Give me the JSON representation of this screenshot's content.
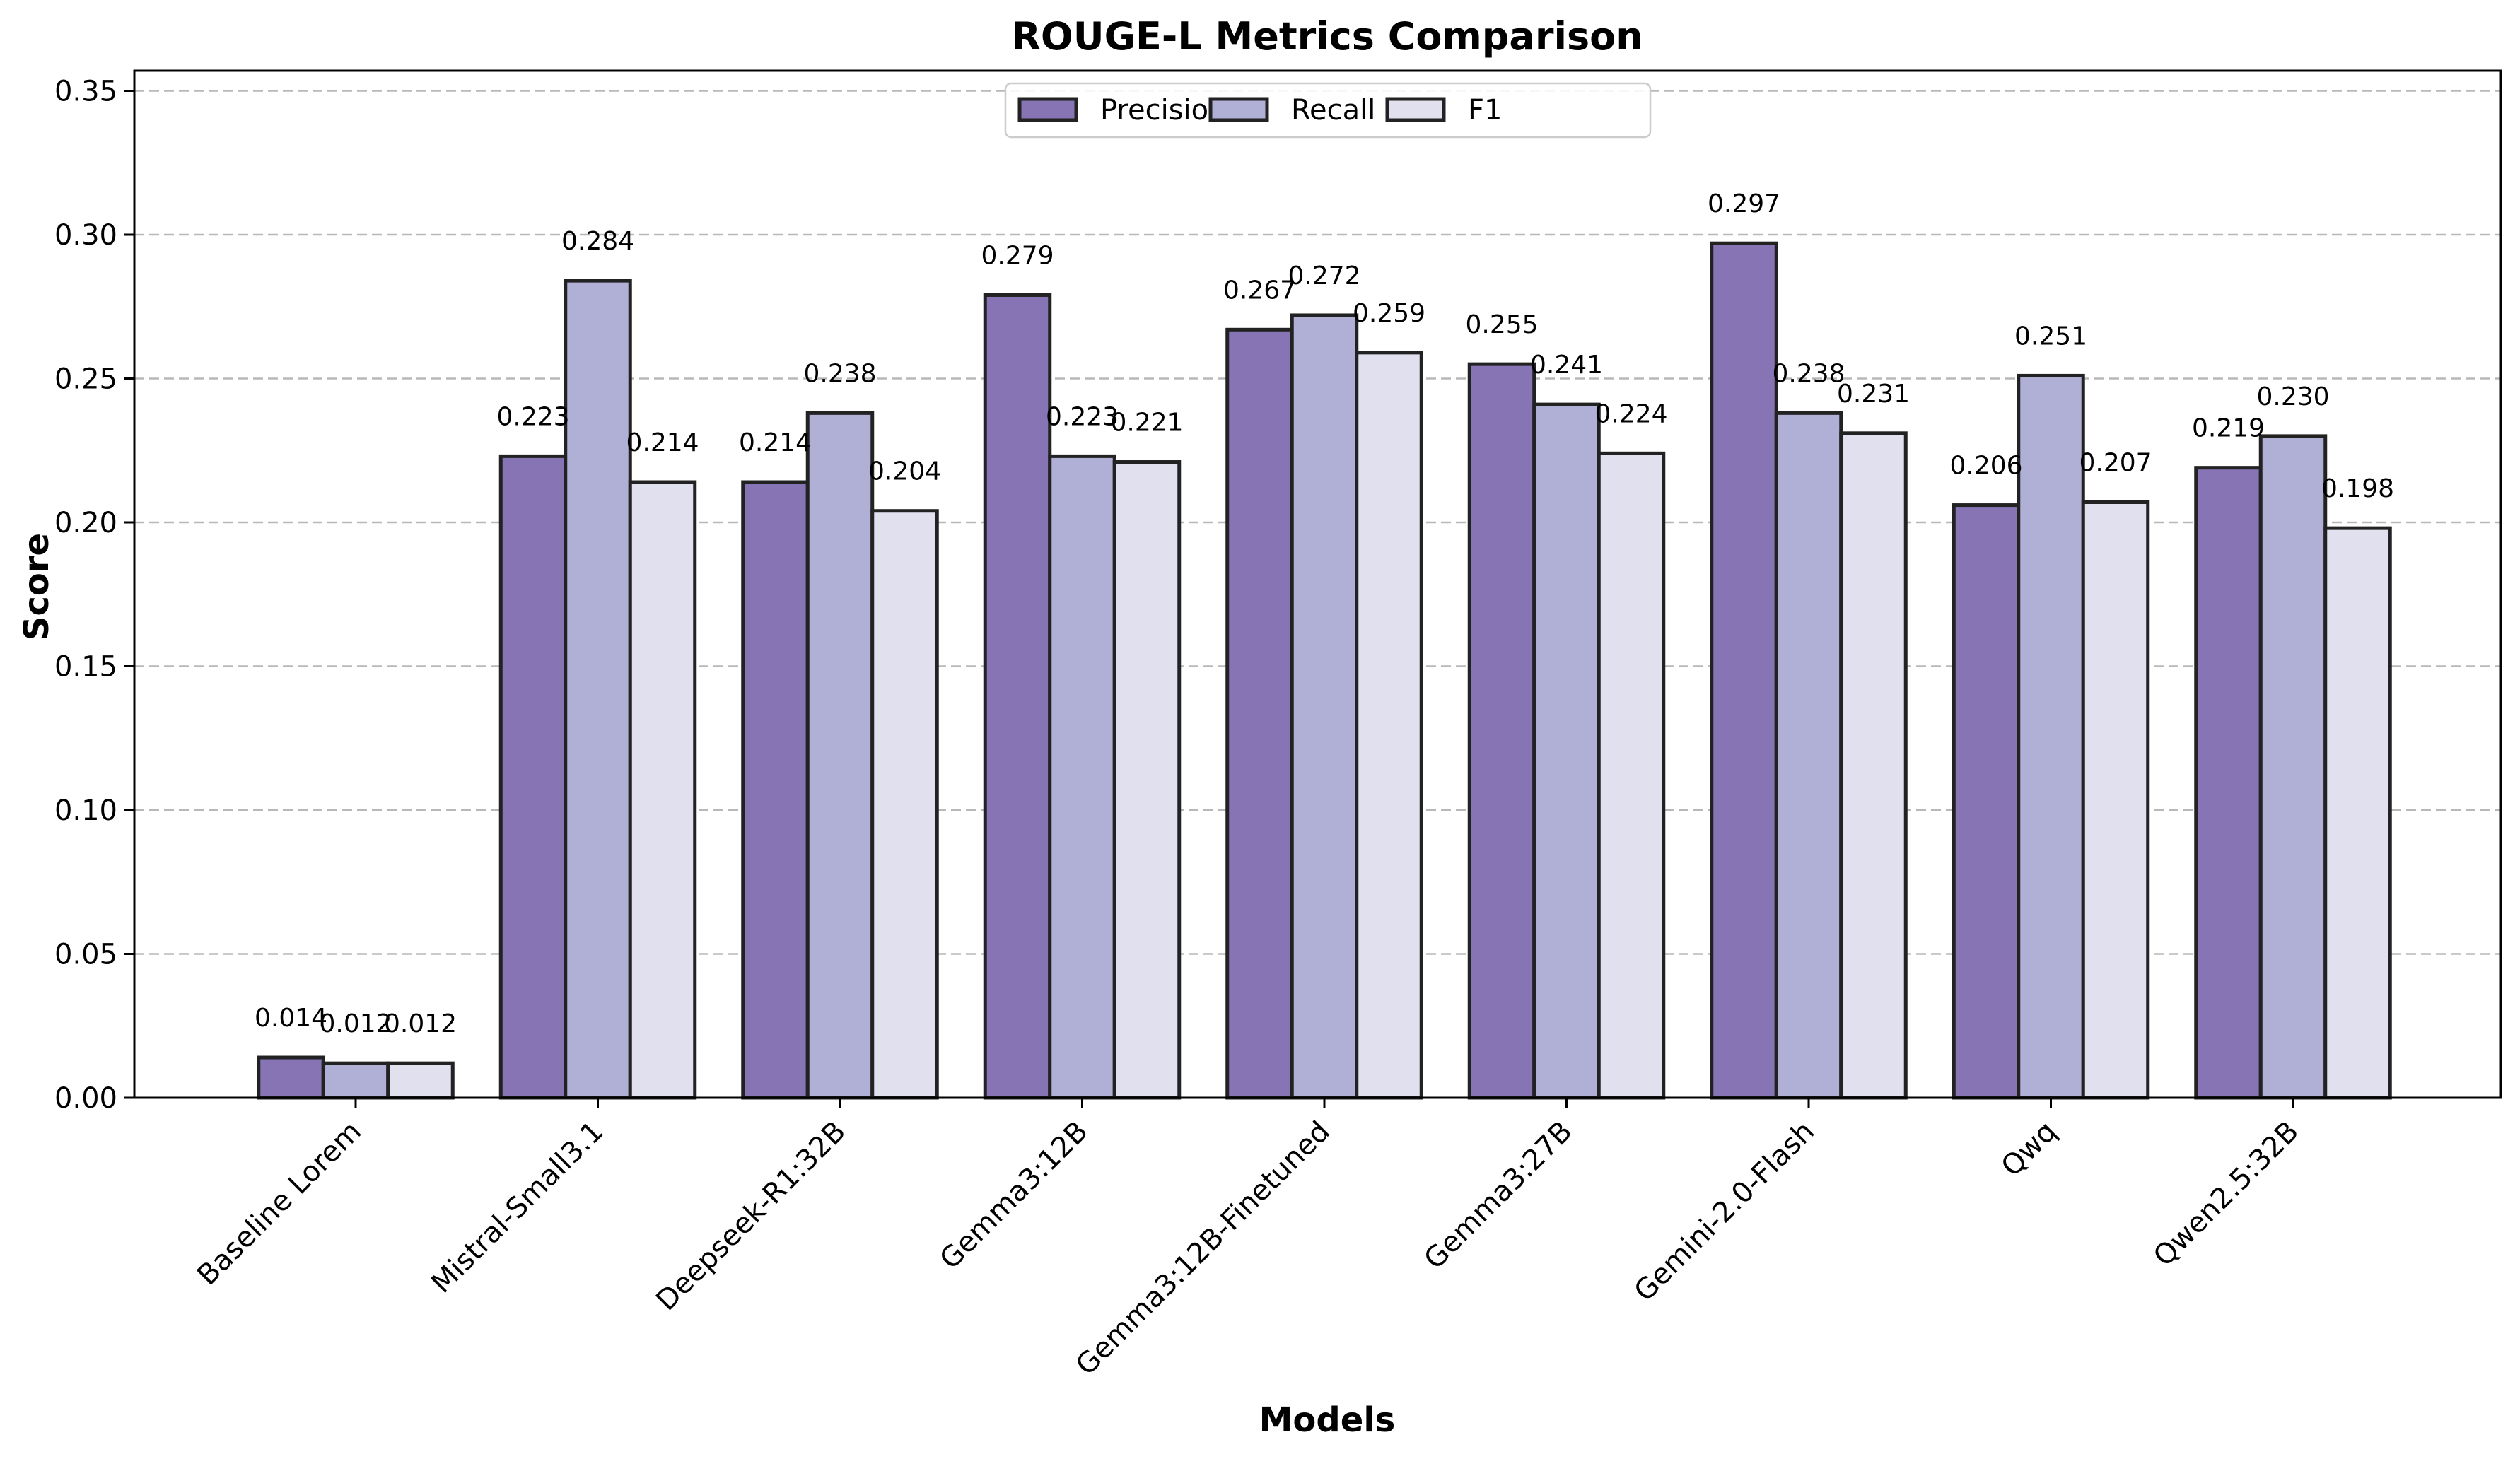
{
  "chart_data": {
    "type": "bar",
    "title": "ROUGE-L Metrics Comparison",
    "xlabel": "Models",
    "ylabel": "Score",
    "ylim": [
      0,
      0.357
    ],
    "yticks": [
      "0.00",
      "0.05",
      "0.10",
      "0.15",
      "0.20",
      "0.25",
      "0.30",
      "0.35"
    ],
    "grid": "y-dashed",
    "legend_position": "top-center",
    "categories": [
      "Baseline Lorem",
      "Mistral-Small3.1",
      "Deepseek-R1:32B",
      "Gemma3:12B",
      "Gemma3:12B-Finetuned",
      "Gemma3:27B",
      "Gemini-2.0-Flash",
      "Qwq",
      "Qwen2.5:32B"
    ],
    "series": [
      {
        "name": "Precision",
        "color": "#8674b4",
        "values": [
          0.014,
          0.223,
          0.214,
          0.279,
          0.267,
          0.255,
          0.297,
          0.206,
          0.219
        ],
        "labels": [
          "0.014",
          "0.223",
          "0.214",
          "0.279",
          "0.267",
          "0.255",
          "0.297",
          "0.206",
          "0.219"
        ]
      },
      {
        "name": "Recall",
        "color": "#b0afd6",
        "values": [
          0.012,
          0.284,
          0.238,
          0.223,
          0.272,
          0.241,
          0.238,
          0.251,
          0.23
        ],
        "labels": [
          "0.012",
          "0.284",
          "0.238",
          "0.223",
          "0.272",
          "0.241",
          "0.238",
          "0.251",
          "0.230"
        ]
      },
      {
        "name": "F1",
        "color": "#e1e0ef",
        "values": [
          0.012,
          0.214,
          0.204,
          0.221,
          0.259,
          0.224,
          0.231,
          0.207,
          0.198
        ],
        "labels": [
          "0.012",
          "0.214",
          "0.204",
          "0.221",
          "0.259",
          "0.224",
          "0.231",
          "0.207",
          "0.198"
        ]
      }
    ]
  }
}
